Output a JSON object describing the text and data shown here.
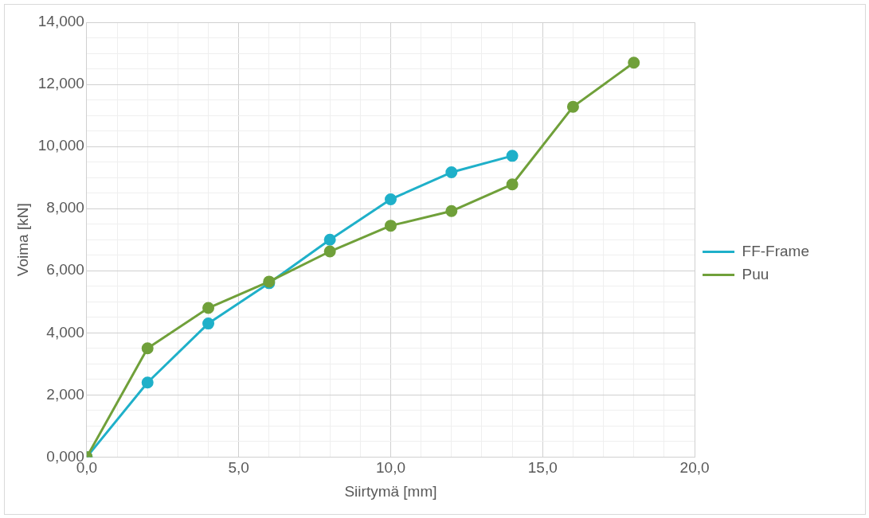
{
  "chart_data": {
    "type": "line",
    "xlabel": "Siirtymä [mm]",
    "ylabel": "Voima [kN]",
    "legend": "right",
    "grid": true,
    "marker": "circle",
    "line_style": "solid",
    "xlim": [
      0,
      20
    ],
    "ylim": [
      0,
      14
    ],
    "xticks": [
      {
        "value": 0,
        "label": "0,0"
      },
      {
        "value": 1,
        "label": null
      },
      {
        "value": 2,
        "label": null
      },
      {
        "value": 3,
        "label": null
      },
      {
        "value": 4,
        "label": null
      },
      {
        "value": 5,
        "label": "5,0"
      },
      {
        "value": 6,
        "label": null
      },
      {
        "value": 7,
        "label": null
      },
      {
        "value": 8,
        "label": null
      },
      {
        "value": 9,
        "label": null
      },
      {
        "value": 10,
        "label": "10,0"
      },
      {
        "value": 11,
        "label": null
      },
      {
        "value": 12,
        "label": null
      },
      {
        "value": 13,
        "label": null
      },
      {
        "value": 14,
        "label": null
      },
      {
        "value": 15,
        "label": "15,0"
      },
      {
        "value": 16,
        "label": null
      },
      {
        "value": 17,
        "label": null
      },
      {
        "value": 18,
        "label": null
      },
      {
        "value": 19,
        "label": null
      },
      {
        "value": 20,
        "label": "20,0"
      }
    ],
    "yticks": [
      {
        "value": 0,
        "label": "0,000"
      },
      {
        "value": 0.5,
        "label": null
      },
      {
        "value": 1,
        "label": null
      },
      {
        "value": 1.5,
        "label": null
      },
      {
        "value": 2,
        "label": "2,000"
      },
      {
        "value": 2.5,
        "label": null
      },
      {
        "value": 3,
        "label": null
      },
      {
        "value": 3.5,
        "label": null
      },
      {
        "value": 4,
        "label": "4,000"
      },
      {
        "value": 4.5,
        "label": null
      },
      {
        "value": 5,
        "label": null
      },
      {
        "value": 5.5,
        "label": null
      },
      {
        "value": 6,
        "label": "6,000"
      },
      {
        "value": 6.5,
        "label": null
      },
      {
        "value": 7,
        "label": null
      },
      {
        "value": 7.5,
        "label": null
      },
      {
        "value": 8,
        "label": "8,000"
      },
      {
        "value": 8.5,
        "label": null
      },
      {
        "value": 9,
        "label": null
      },
      {
        "value": 9.5,
        "label": null
      },
      {
        "value": 10,
        "label": "10,000"
      },
      {
        "value": 10.5,
        "label": null
      },
      {
        "value": 11,
        "label": null
      },
      {
        "value": 11.5,
        "label": null
      },
      {
        "value": 12,
        "label": "12,000"
      },
      {
        "value": 12.5,
        "label": null
      },
      {
        "value": 13,
        "label": null
      },
      {
        "value": 13.5,
        "label": null
      },
      {
        "value": 14,
        "label": "14,000"
      }
    ],
    "series": [
      {
        "name": "FF-Frame",
        "color": "#1fb0c9",
        "x": [
          0,
          2,
          4,
          6,
          8,
          10,
          12,
          14
        ],
        "values": [
          0,
          2.4,
          4.3,
          5.6,
          7.0,
          8.3,
          9.17,
          9.7
        ]
      },
      {
        "name": "Puu",
        "color": "#70a03a",
        "x": [
          0,
          2,
          4,
          6,
          8,
          10,
          12,
          14,
          16,
          18
        ],
        "values": [
          0,
          3.5,
          4.8,
          5.65,
          6.62,
          7.45,
          7.92,
          8.78,
          11.28,
          12.7
        ]
      }
    ]
  }
}
